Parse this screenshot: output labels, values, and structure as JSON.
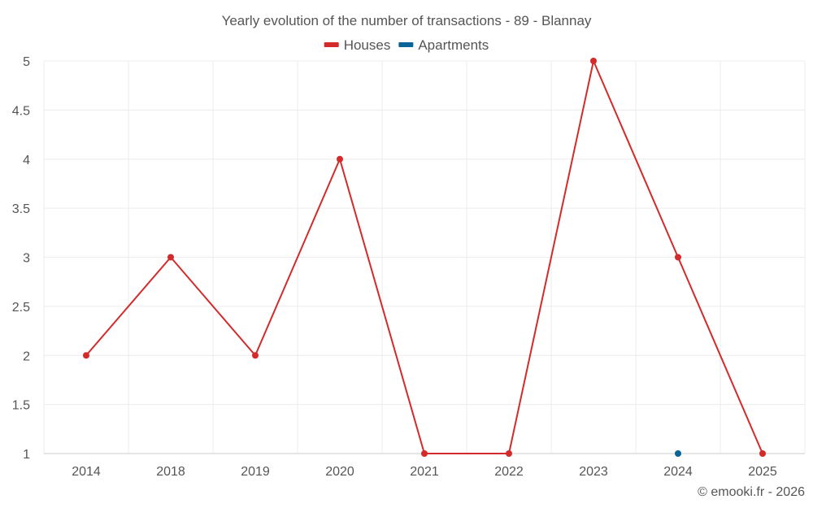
{
  "chart_data": {
    "type": "line",
    "title": "Yearly evolution of the number of transactions - 89 - Blannay",
    "categories": [
      "2014",
      "2018",
      "2019",
      "2020",
      "2021",
      "2022",
      "2023",
      "2024",
      "2025"
    ],
    "series": [
      {
        "name": "Houses",
        "color": "#d32a2a",
        "values": [
          2,
          3,
          2,
          4,
          1,
          1,
          5,
          3,
          1
        ]
      },
      {
        "name": "Apartments",
        "color": "#0a6496",
        "values": [
          null,
          null,
          null,
          null,
          null,
          null,
          null,
          1,
          null
        ]
      }
    ],
    "ylim": [
      1,
      5
    ],
    "yticks": [
      1,
      1.5,
      2,
      2.5,
      3,
      3.5,
      4,
      4.5,
      5
    ],
    "ytick_labels": [
      "1",
      "1.5",
      "2",
      "2.5",
      "3",
      "3.5",
      "4",
      "4.5",
      "5"
    ],
    "xlabel": "",
    "ylabel": "",
    "grid": true,
    "legend_position": "top-center",
    "credit": "© emooki.fr - 2026"
  }
}
